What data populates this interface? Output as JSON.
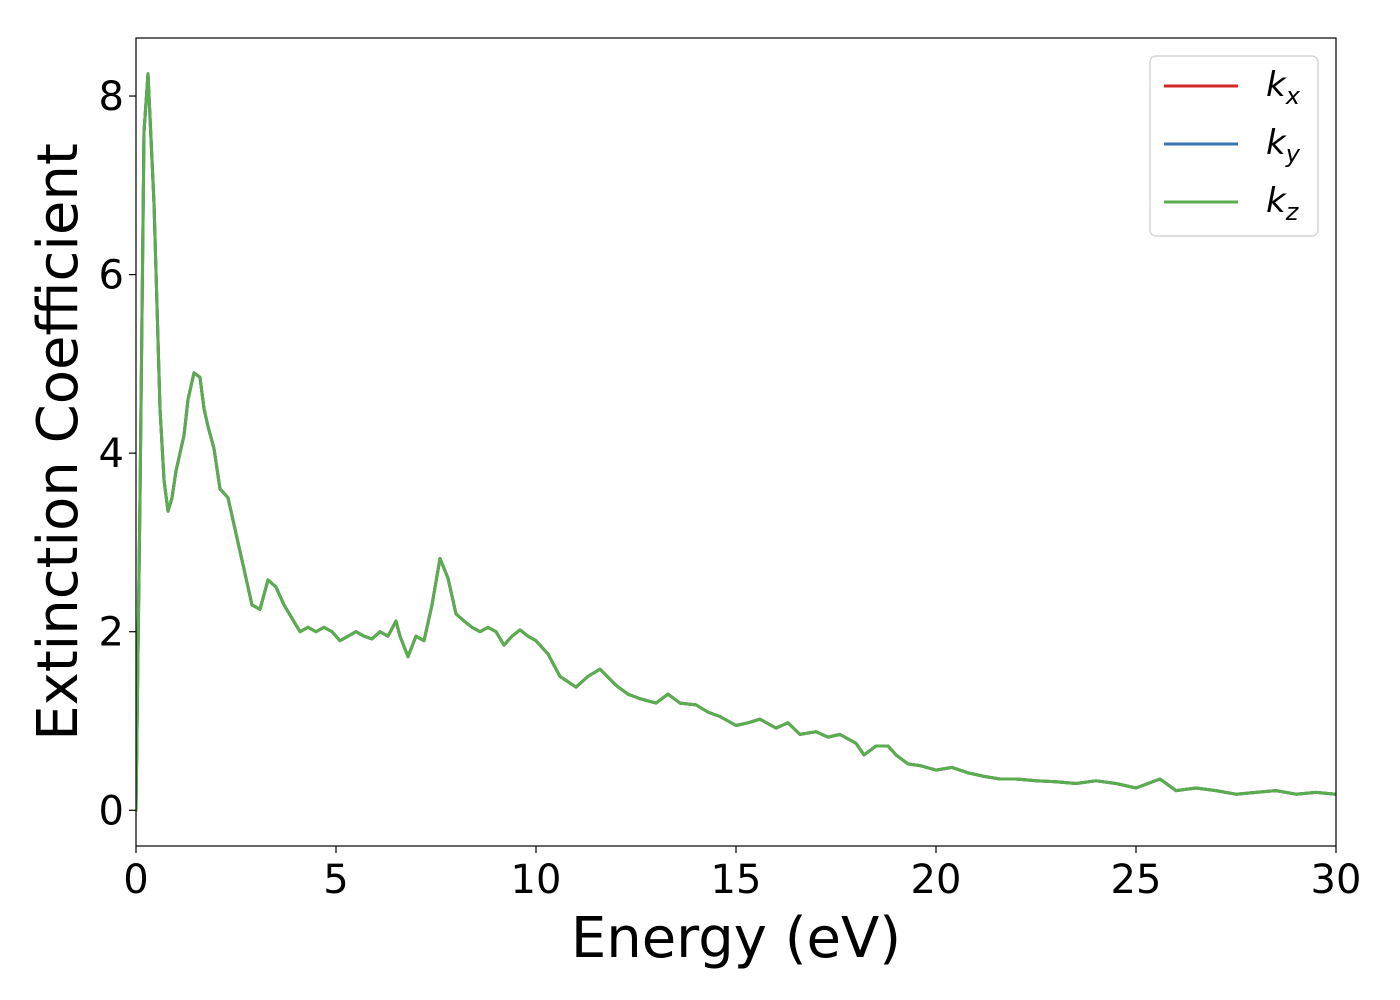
{
  "chart_data": {
    "type": "line",
    "xlabel": "Energy (eV)",
    "ylabel": "Extinction Coefficient",
    "xlim": [
      0,
      30
    ],
    "ylim": [
      -0.4,
      8.65
    ],
    "xticks": [
      0,
      5,
      10,
      15,
      20,
      25,
      30
    ],
    "yticks": [
      0,
      2,
      4,
      6,
      8
    ],
    "grid": false,
    "legend_position": "top-right",
    "colors": {
      "kx": "#d62728",
      "ky": "#3a76af",
      "kz": "#5aad4e"
    },
    "legend": [
      {
        "key": "kx",
        "base": "k",
        "sub": "x"
      },
      {
        "key": "ky",
        "base": "k",
        "sub": "y"
      },
      {
        "key": "kz",
        "base": "k",
        "sub": "z"
      }
    ],
    "x": [
      0.0,
      0.1,
      0.2,
      0.3,
      0.45,
      0.6,
      0.7,
      0.8,
      0.9,
      1.0,
      1.2,
      1.3,
      1.45,
      1.6,
      1.7,
      1.8,
      1.95,
      2.1,
      2.3,
      2.5,
      2.7,
      2.9,
      3.1,
      3.3,
      3.5,
      3.7,
      3.9,
      4.1,
      4.3,
      4.5,
      4.7,
      4.9,
      5.1,
      5.3,
      5.5,
      5.7,
      5.9,
      6.1,
      6.3,
      6.5,
      6.6,
      6.8,
      7.0,
      7.2,
      7.4,
      7.6,
      7.8,
      8.0,
      8.2,
      8.4,
      8.6,
      8.8,
      9.0,
      9.2,
      9.4,
      9.6,
      9.8,
      10.0,
      10.3,
      10.6,
      11.0,
      11.3,
      11.6,
      12.0,
      12.3,
      12.6,
      13.0,
      13.3,
      13.6,
      14.0,
      14.3,
      14.6,
      15.0,
      15.3,
      15.6,
      16.0,
      16.3,
      16.6,
      17.0,
      17.3,
      17.6,
      18.0,
      18.2,
      18.5,
      18.8,
      19.0,
      19.3,
      19.6,
      20.0,
      20.4,
      20.8,
      21.2,
      21.6,
      22.0,
      22.5,
      23.0,
      23.5,
      24.0,
      24.5,
      25.0,
      25.3,
      25.6,
      26.0,
      26.5,
      27.0,
      27.5,
      28.0,
      28.5,
      29.0,
      29.5,
      30.0
    ],
    "series": [
      {
        "key": "kx",
        "values": [
          0.0,
          3.5,
          7.6,
          8.25,
          6.8,
          4.5,
          3.7,
          3.35,
          3.5,
          3.8,
          4.2,
          4.6,
          4.9,
          4.85,
          4.5,
          4.3,
          4.05,
          3.6,
          3.5,
          3.1,
          2.7,
          2.3,
          2.25,
          2.58,
          2.5,
          2.3,
          2.15,
          2.0,
          2.05,
          2.0,
          2.05,
          2.0,
          1.9,
          1.95,
          2.0,
          1.95,
          1.92,
          2.0,
          1.95,
          2.12,
          1.95,
          1.72,
          1.95,
          1.9,
          2.3,
          2.82,
          2.6,
          2.2,
          2.12,
          2.05,
          2.0,
          2.05,
          2.0,
          1.85,
          1.95,
          2.02,
          1.95,
          1.9,
          1.75,
          1.5,
          1.38,
          1.5,
          1.58,
          1.4,
          1.3,
          1.25,
          1.2,
          1.3,
          1.2,
          1.18,
          1.1,
          1.05,
          0.95,
          0.98,
          1.02,
          0.92,
          0.98,
          0.85,
          0.88,
          0.82,
          0.85,
          0.75,
          0.62,
          0.72,
          0.72,
          0.62,
          0.52,
          0.5,
          0.45,
          0.48,
          0.42,
          0.38,
          0.35,
          0.35,
          0.33,
          0.32,
          0.3,
          0.33,
          0.3,
          0.25,
          0.3,
          0.35,
          0.22,
          0.25,
          0.22,
          0.18,
          0.2,
          0.22,
          0.18,
          0.2,
          0.18
        ]
      },
      {
        "key": "ky",
        "values": [
          0.0,
          3.5,
          7.6,
          8.25,
          6.8,
          4.5,
          3.7,
          3.35,
          3.5,
          3.8,
          4.2,
          4.6,
          4.9,
          4.85,
          4.5,
          4.3,
          4.05,
          3.6,
          3.5,
          3.1,
          2.7,
          2.3,
          2.25,
          2.58,
          2.5,
          2.3,
          2.15,
          2.0,
          2.05,
          2.0,
          2.05,
          2.0,
          1.9,
          1.95,
          2.0,
          1.95,
          1.92,
          2.0,
          1.95,
          2.12,
          1.95,
          1.72,
          1.95,
          1.9,
          2.3,
          2.82,
          2.6,
          2.2,
          2.12,
          2.05,
          2.0,
          2.05,
          2.0,
          1.85,
          1.95,
          2.02,
          1.95,
          1.9,
          1.75,
          1.5,
          1.38,
          1.5,
          1.58,
          1.4,
          1.3,
          1.25,
          1.2,
          1.3,
          1.2,
          1.18,
          1.1,
          1.05,
          0.95,
          0.98,
          1.02,
          0.92,
          0.98,
          0.85,
          0.88,
          0.82,
          0.85,
          0.75,
          0.62,
          0.72,
          0.72,
          0.62,
          0.52,
          0.5,
          0.45,
          0.48,
          0.42,
          0.38,
          0.35,
          0.35,
          0.33,
          0.32,
          0.3,
          0.33,
          0.3,
          0.25,
          0.3,
          0.35,
          0.22,
          0.25,
          0.22,
          0.18,
          0.2,
          0.22,
          0.18,
          0.2,
          0.18
        ]
      },
      {
        "key": "kz",
        "values": [
          0.0,
          3.5,
          7.6,
          8.25,
          6.8,
          4.5,
          3.7,
          3.35,
          3.5,
          3.8,
          4.2,
          4.6,
          4.9,
          4.85,
          4.5,
          4.3,
          4.05,
          3.6,
          3.5,
          3.1,
          2.7,
          2.3,
          2.25,
          2.58,
          2.5,
          2.3,
          2.15,
          2.0,
          2.05,
          2.0,
          2.05,
          2.0,
          1.9,
          1.95,
          2.0,
          1.95,
          1.92,
          2.0,
          1.95,
          2.12,
          1.95,
          1.72,
          1.95,
          1.9,
          2.3,
          2.82,
          2.6,
          2.2,
          2.12,
          2.05,
          2.0,
          2.05,
          2.0,
          1.85,
          1.95,
          2.02,
          1.95,
          1.9,
          1.75,
          1.5,
          1.38,
          1.5,
          1.58,
          1.4,
          1.3,
          1.25,
          1.2,
          1.3,
          1.2,
          1.18,
          1.1,
          1.05,
          0.95,
          0.98,
          1.02,
          0.92,
          0.98,
          0.85,
          0.88,
          0.82,
          0.85,
          0.75,
          0.62,
          0.72,
          0.72,
          0.62,
          0.52,
          0.5,
          0.45,
          0.48,
          0.42,
          0.38,
          0.35,
          0.35,
          0.33,
          0.32,
          0.3,
          0.33,
          0.3,
          0.25,
          0.3,
          0.35,
          0.22,
          0.25,
          0.22,
          0.18,
          0.2,
          0.22,
          0.18,
          0.2,
          0.18
        ]
      }
    ]
  }
}
